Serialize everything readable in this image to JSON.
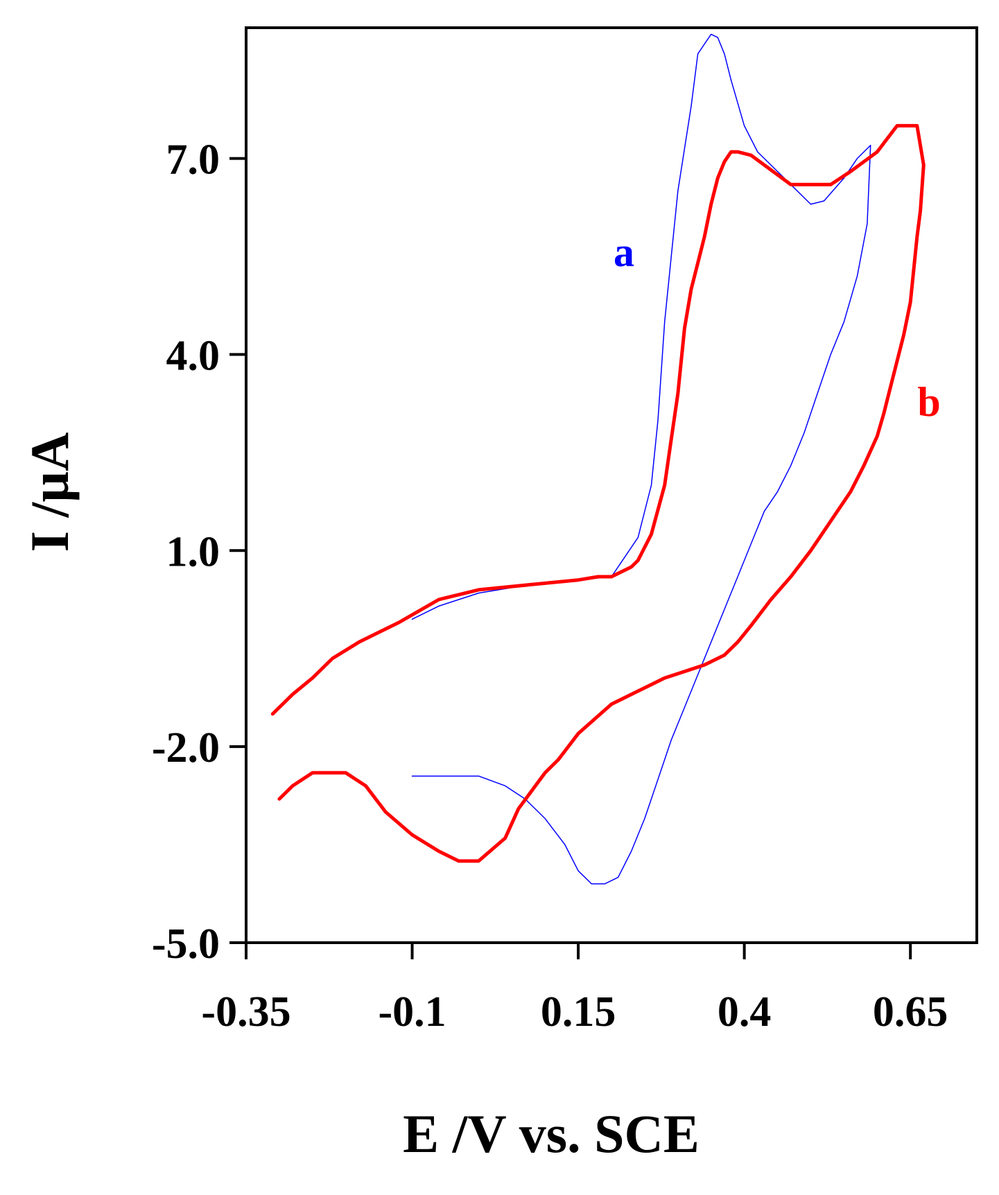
{
  "chart_data": {
    "type": "line",
    "title": "",
    "xlabel": "E /V vs. SCE",
    "ylabel": "I /µA",
    "xlim": [
      -0.35,
      0.75
    ],
    "ylim": [
      -5.0,
      9.0
    ],
    "x_ticks": [
      -0.35,
      -0.1,
      0.15,
      0.4,
      0.65
    ],
    "x_tick_labels": [
      "-0.35",
      "-0.1",
      "0.15",
      "0.4",
      "0.65"
    ],
    "y_ticks": [
      -5.0,
      -2.0,
      1.0,
      4.0,
      7.0
    ],
    "y_tick_labels": [
      "-5.0",
      "-2.0",
      "1.0",
      "4.0",
      "7.0"
    ],
    "grid": false,
    "legend": "none",
    "series": [
      {
        "name": "a",
        "color": "#0000ff",
        "x": [
          -0.1,
          -0.06,
          0.0,
          0.06,
          0.1,
          0.15,
          0.2,
          0.24,
          0.26,
          0.27,
          0.28,
          0.3,
          0.32,
          0.33,
          0.35,
          0.36,
          0.37,
          0.38,
          0.4,
          0.42,
          0.45,
          0.47,
          0.5,
          0.52,
          0.55,
          0.57,
          0.585,
          0.59,
          0.585,
          0.57,
          0.55,
          0.53,
          0.51,
          0.49,
          0.47,
          0.45,
          0.43,
          0.41,
          0.39,
          0.37,
          0.35,
          0.33,
          0.31,
          0.29,
          0.27,
          0.25,
          0.23,
          0.21,
          0.19,
          0.17,
          0.15,
          0.13,
          0.1,
          0.07,
          0.04,
          0.0,
          -0.04,
          -0.07,
          -0.1
        ],
        "y": [
          -0.05,
          0.15,
          0.35,
          0.45,
          0.5,
          0.55,
          0.6,
          1.2,
          2.0,
          3.0,
          4.5,
          6.5,
          7.8,
          8.6,
          8.9,
          8.85,
          8.6,
          8.2,
          7.5,
          7.1,
          6.8,
          6.6,
          6.3,
          6.35,
          6.7,
          7.0,
          7.15,
          7.2,
          6.0,
          5.2,
          4.5,
          4.0,
          3.4,
          2.8,
          2.3,
          1.9,
          1.6,
          1.1,
          0.6,
          0.1,
          -0.4,
          -0.9,
          -1.4,
          -1.9,
          -2.5,
          -3.1,
          -3.6,
          -4.0,
          -4.1,
          -4.1,
          -3.9,
          -3.5,
          -3.1,
          -2.8,
          -2.6,
          -2.45,
          -2.45,
          -2.45,
          -2.45
        ]
      },
      {
        "name": "b",
        "color": "#ff0000",
        "x": [
          -0.31,
          -0.28,
          -0.25,
          -0.22,
          -0.18,
          -0.15,
          -0.12,
          -0.06,
          0.0,
          0.05,
          0.1,
          0.15,
          0.18,
          0.2,
          0.23,
          0.24,
          0.26,
          0.28,
          0.29,
          0.3,
          0.31,
          0.32,
          0.33,
          0.34,
          0.35,
          0.36,
          0.37,
          0.38,
          0.39,
          0.41,
          0.43,
          0.45,
          0.47,
          0.5,
          0.53,
          0.56,
          0.6,
          0.63,
          0.66,
          0.67,
          0.665,
          0.66,
          0.655,
          0.65,
          0.64,
          0.63,
          0.62,
          0.61,
          0.6,
          0.58,
          0.56,
          0.53,
          0.5,
          0.47,
          0.44,
          0.41,
          0.39,
          0.37,
          0.34,
          0.31,
          0.28,
          0.26,
          0.24,
          0.2,
          0.15,
          0.12,
          0.1,
          0.06,
          0.04,
          0.0,
          -0.03,
          -0.06,
          -0.1,
          -0.14,
          -0.17,
          -0.2,
          -0.25,
          -0.28,
          -0.3
        ],
        "y": [
          -1.5,
          -1.2,
          -0.95,
          -0.65,
          -0.4,
          -0.25,
          -0.1,
          0.25,
          0.4,
          0.45,
          0.5,
          0.55,
          0.6,
          0.6,
          0.75,
          0.85,
          1.25,
          2.0,
          2.7,
          3.4,
          4.4,
          5.0,
          5.4,
          5.8,
          6.3,
          6.7,
          6.95,
          7.1,
          7.1,
          7.05,
          6.9,
          6.75,
          6.6,
          6.6,
          6.6,
          6.8,
          7.1,
          7.5,
          7.5,
          6.9,
          6.2,
          5.8,
          5.3,
          4.8,
          4.3,
          3.9,
          3.5,
          3.1,
          2.75,
          2.3,
          1.9,
          1.45,
          1.0,
          0.6,
          0.25,
          -0.15,
          -0.4,
          -0.6,
          -0.75,
          -0.85,
          -0.95,
          -1.05,
          -1.15,
          -1.35,
          -1.8,
          -2.2,
          -2.4,
          -2.95,
          -3.4,
          -3.75,
          -3.75,
          -3.6,
          -3.35,
          -3.0,
          -2.6,
          -2.4,
          -2.4,
          -2.6,
          -2.8
        ]
      }
    ]
  }
}
